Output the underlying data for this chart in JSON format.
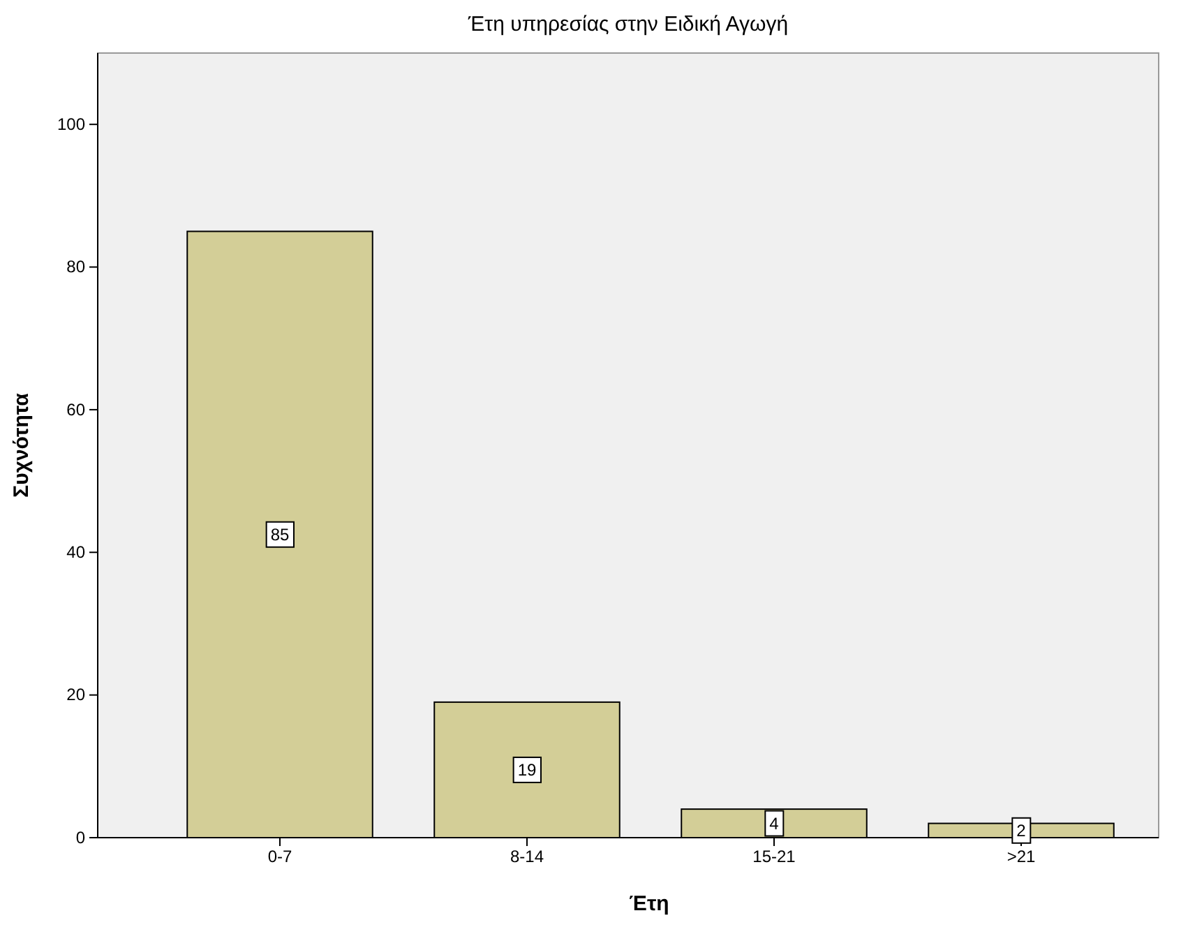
{
  "chart_data": {
    "type": "bar",
    "title": "Έτη υπηρεσίας στην Ειδική Αγωγή",
    "xlabel": "Έτη",
    "ylabel": "Συχνότητα",
    "categories": [
      "0-7",
      "8-14",
      "15-21",
      ">21"
    ],
    "values": [
      85,
      19,
      4,
      2
    ],
    "color": "#d3ce97",
    "ylim": [
      0,
      110
    ],
    "yticks": [
      0,
      20,
      40,
      60,
      80,
      100
    ],
    "grid": false,
    "data_labels": true
  }
}
